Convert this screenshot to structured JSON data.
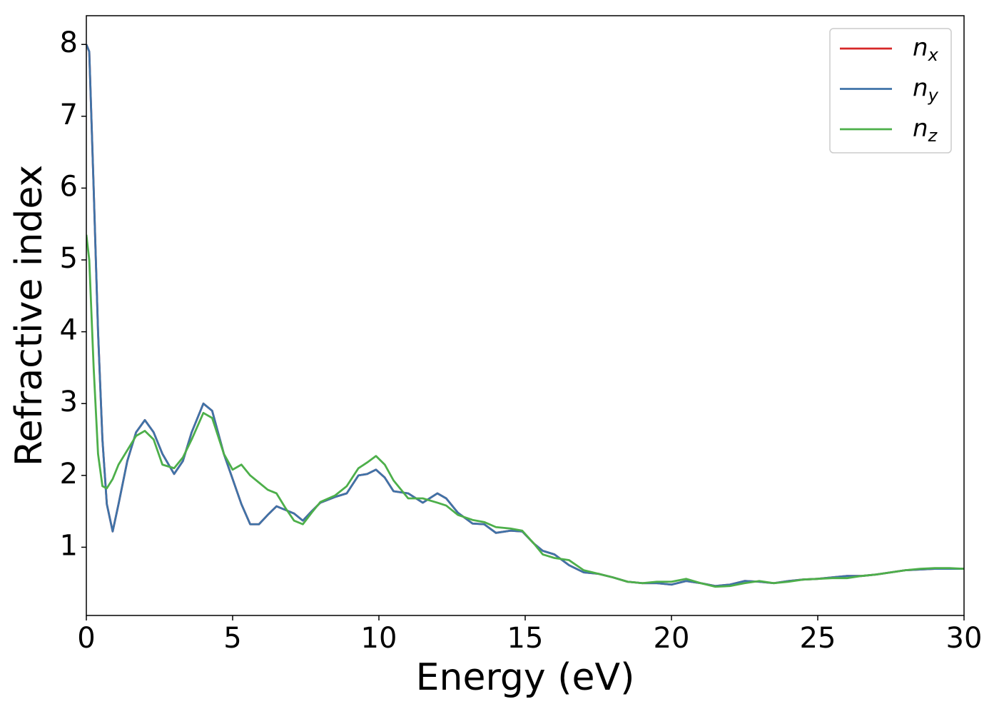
{
  "chart_data": {
    "type": "line",
    "xlabel": "Energy (eV)",
    "ylabel": "Refractive index",
    "x": [
      0,
      0.1,
      0.25,
      0.4,
      0.55,
      0.7,
      0.9,
      1.1,
      1.4,
      1.7,
      2.0,
      2.3,
      2.6,
      3.0,
      3.3,
      3.6,
      4.0,
      4.3,
      4.7,
      5.0,
      5.3,
      5.6,
      5.9,
      6.2,
      6.5,
      6.8,
      7.1,
      7.4,
      7.7,
      8.0,
      8.5,
      8.9,
      9.3,
      9.6,
      9.9,
      10.2,
      10.5,
      11.0,
      11.5,
      12.0,
      12.3,
      12.7,
      13.2,
      13.6,
      14.0,
      14.5,
      14.9,
      15.3,
      15.6,
      16.0,
      16.5,
      17.0,
      17.5,
      18.0,
      18.5,
      19.0,
      19.5,
      20.0,
      20.5,
      21.0,
      21.5,
      22.0,
      22.5,
      23.0,
      23.5,
      24.0,
      24.5,
      25.0,
      25.5,
      26.0,
      26.5,
      27.0,
      27.5,
      28.0,
      28.5,
      29.0,
      29.5,
      30.0
    ],
    "series": [
      {
        "name": "nx",
        "color": "#d62728",
        "values": [
          8.0,
          7.9,
          6.0,
          4.0,
          2.5,
          1.6,
          1.22,
          1.6,
          2.2,
          2.6,
          2.77,
          2.6,
          2.3,
          2.02,
          2.2,
          2.6,
          3.0,
          2.9,
          2.3,
          1.95,
          1.6,
          1.32,
          1.32,
          1.45,
          1.57,
          1.52,
          1.47,
          1.37,
          1.5,
          1.62,
          1.7,
          1.75,
          2.0,
          2.02,
          2.08,
          1.97,
          1.78,
          1.75,
          1.62,
          1.75,
          1.68,
          1.48,
          1.33,
          1.32,
          1.2,
          1.23,
          1.22,
          1.05,
          0.95,
          0.9,
          0.75,
          0.65,
          0.63,
          0.58,
          0.52,
          0.5,
          0.5,
          0.48,
          0.53,
          0.5,
          0.46,
          0.48,
          0.53,
          0.52,
          0.5,
          0.53,
          0.55,
          0.56,
          0.58,
          0.6,
          0.6,
          0.62,
          0.65,
          0.68,
          0.69,
          0.7,
          0.7,
          0.7
        ]
      },
      {
        "name": "ny",
        "color": "#3f73a8",
        "values": [
          8.0,
          7.9,
          6.0,
          4.0,
          2.5,
          1.6,
          1.22,
          1.6,
          2.2,
          2.6,
          2.77,
          2.6,
          2.3,
          2.02,
          2.2,
          2.6,
          3.0,
          2.9,
          2.3,
          1.95,
          1.6,
          1.32,
          1.32,
          1.45,
          1.57,
          1.52,
          1.47,
          1.37,
          1.5,
          1.62,
          1.7,
          1.75,
          2.0,
          2.02,
          2.08,
          1.97,
          1.78,
          1.75,
          1.62,
          1.75,
          1.68,
          1.48,
          1.33,
          1.32,
          1.2,
          1.23,
          1.22,
          1.05,
          0.95,
          0.9,
          0.75,
          0.65,
          0.63,
          0.58,
          0.52,
          0.5,
          0.5,
          0.48,
          0.53,
          0.5,
          0.46,
          0.48,
          0.53,
          0.52,
          0.5,
          0.53,
          0.55,
          0.56,
          0.58,
          0.6,
          0.6,
          0.62,
          0.65,
          0.68,
          0.69,
          0.7,
          0.7,
          0.7
        ]
      },
      {
        "name": "nz",
        "color": "#4daf4a",
        "values": [
          5.35,
          5.0,
          3.5,
          2.3,
          1.85,
          1.82,
          1.95,
          2.15,
          2.35,
          2.55,
          2.62,
          2.5,
          2.15,
          2.1,
          2.25,
          2.5,
          2.87,
          2.8,
          2.3,
          2.08,
          2.15,
          2.0,
          1.9,
          1.8,
          1.75,
          1.55,
          1.37,
          1.32,
          1.48,
          1.63,
          1.72,
          1.85,
          2.1,
          2.18,
          2.27,
          2.15,
          1.93,
          1.68,
          1.68,
          1.62,
          1.58,
          1.45,
          1.38,
          1.35,
          1.28,
          1.26,
          1.23,
          1.05,
          0.9,
          0.85,
          0.82,
          0.68,
          0.63,
          0.58,
          0.52,
          0.5,
          0.52,
          0.52,
          0.56,
          0.5,
          0.45,
          0.46,
          0.5,
          0.53,
          0.5,
          0.52,
          0.55,
          0.56,
          0.57,
          0.57,
          0.6,
          0.62,
          0.65,
          0.68,
          0.7,
          0.71,
          0.71,
          0.7
        ]
      }
    ],
    "xlim": [
      0,
      30
    ],
    "xticks": [
      0,
      5,
      10,
      15,
      20,
      25,
      30
    ],
    "ylim": [
      0.05,
      8.4
    ],
    "yticks": [
      1,
      2,
      3,
      4,
      5,
      6,
      7,
      8
    ],
    "grid": false,
    "legend": "upper right"
  }
}
